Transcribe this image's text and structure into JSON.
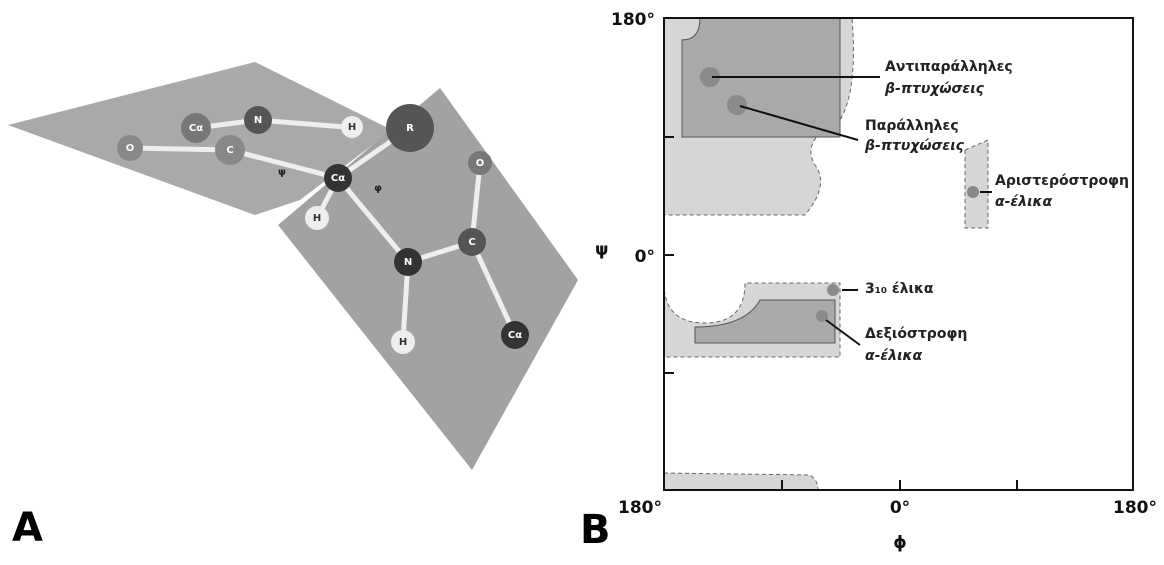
{
  "panel_a": {
    "label": "A",
    "atoms": [
      "Cα",
      "N",
      "H",
      "R",
      "O",
      "C",
      "Cα",
      "H",
      "O",
      "C",
      "N",
      "H",
      "Cα"
    ],
    "angles": [
      "ψ",
      "φ"
    ]
  },
  "panel_b": {
    "label": "B",
    "y_axis": {
      "label": "ψ",
      "ticks": [
        "180°",
        "0°"
      ]
    },
    "x_axis": {
      "label": "ϕ",
      "ticks": [
        "180°",
        "0°",
        "180°"
      ]
    },
    "annotations": [
      {
        "lines": [
          "Αντιπαράλληλες",
          "β-πτυχώσεις"
        ]
      },
      {
        "lines": [
          "Παράλληλες",
          "β-πτυχώσεις"
        ]
      },
      {
        "lines": [
          "Αριστερόστροφη",
          "α-έλικα"
        ]
      },
      {
        "lines": [
          "3₁₀ έλικα"
        ]
      },
      {
        "lines": [
          "Δεξιόστροφη",
          "α-έλικα"
        ]
      }
    ]
  }
}
